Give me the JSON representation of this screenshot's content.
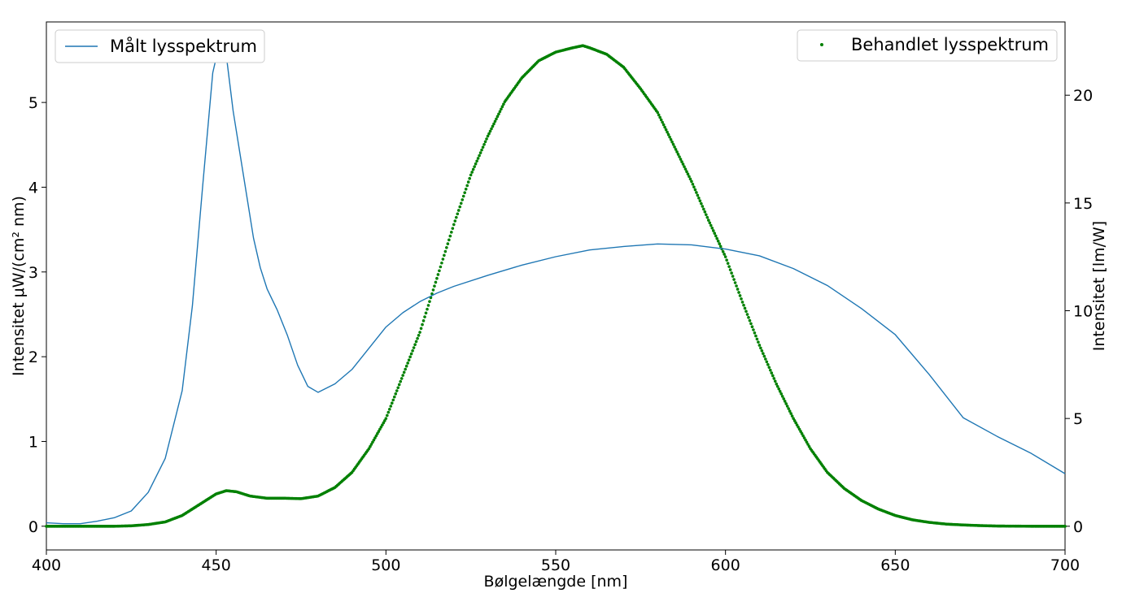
{
  "chart_data": {
    "type": "line",
    "title": "",
    "xlabel": "Bølgelængde [nm]",
    "ylabel_left": "Intensitet μW/(cm² nm)",
    "ylabel_right": "Intensitet [lm/W]",
    "xlim": [
      400,
      700
    ],
    "ylim_left": [
      -0.28,
      5.95
    ],
    "ylim_right": [
      -1.1,
      23.4
    ],
    "x_ticks": [
      "400",
      "450",
      "500",
      "550",
      "600",
      "650",
      "700"
    ],
    "y_ticks_left": [
      "0",
      "1",
      "2",
      "3",
      "4",
      "5"
    ],
    "y_ticks_right": [
      "0",
      "5",
      "10",
      "15",
      "20"
    ],
    "grid": false,
    "series": [
      {
        "name": "Målt lysspektrum",
        "axis": "left",
        "style": "line",
        "color": "#1f77b4",
        "x": [
          400,
          405,
          410,
          415,
          420,
          425,
          430,
          435,
          440,
          443,
          446,
          449,
          451,
          453,
          455,
          457,
          459,
          461,
          463,
          465,
          468,
          471,
          474,
          477,
          480,
          485,
          490,
          495,
          500,
          505,
          510,
          515,
          520,
          530,
          540,
          550,
          560,
          570,
          580,
          590,
          600,
          610,
          620,
          630,
          640,
          650,
          660,
          670,
          680,
          690,
          700
        ],
        "y": [
          0.04,
          0.03,
          0.03,
          0.06,
          0.1,
          0.18,
          0.4,
          0.8,
          1.6,
          2.6,
          4.0,
          5.35,
          5.7,
          5.55,
          4.9,
          4.4,
          3.9,
          3.4,
          3.05,
          2.8,
          2.55,
          2.25,
          1.9,
          1.65,
          1.58,
          1.68,
          1.85,
          2.1,
          2.35,
          2.52,
          2.65,
          2.75,
          2.83,
          2.96,
          3.08,
          3.18,
          3.26,
          3.3,
          3.33,
          3.32,
          3.27,
          3.19,
          3.04,
          2.84,
          2.57,
          2.26,
          1.79,
          1.28,
          1.06,
          0.86,
          0.62
        ]
      },
      {
        "name": "Behandlet lysspektrum",
        "axis": "right",
        "style": "scatter",
        "color": "#008000",
        "x": [
          400,
          410,
          420,
          425,
          430,
          435,
          440,
          445,
          450,
          453,
          456,
          460,
          465,
          470,
          475,
          480,
          485,
          490,
          495,
          500,
          505,
          510,
          515,
          520,
          525,
          530,
          535,
          540,
          545,
          550,
          555,
          558,
          560,
          565,
          570,
          575,
          580,
          585,
          590,
          595,
          600,
          605,
          610,
          615,
          620,
          625,
          630,
          635,
          640,
          645,
          650,
          655,
          660,
          665,
          670,
          675,
          680,
          690,
          700
        ],
        "y": [
          0,
          0,
          0,
          0.02,
          0.08,
          0.2,
          0.5,
          1.0,
          1.5,
          1.65,
          1.6,
          1.4,
          1.3,
          1.3,
          1.28,
          1.4,
          1.8,
          2.5,
          3.6,
          5.0,
          7.0,
          9.0,
          11.5,
          14.0,
          16.3,
          18.1,
          19.7,
          20.8,
          21.6,
          22.0,
          22.2,
          22.3,
          22.2,
          21.9,
          21.3,
          20.3,
          19.2,
          17.6,
          16.0,
          14.2,
          12.5,
          10.4,
          8.4,
          6.6,
          5.0,
          3.6,
          2.5,
          1.75,
          1.2,
          0.8,
          0.5,
          0.3,
          0.18,
          0.1,
          0.06,
          0.03,
          0.01,
          0,
          0
        ]
      }
    ],
    "legends": [
      {
        "placement": "top-left",
        "series": 0
      },
      {
        "placement": "top-right",
        "series": 1
      }
    ]
  }
}
